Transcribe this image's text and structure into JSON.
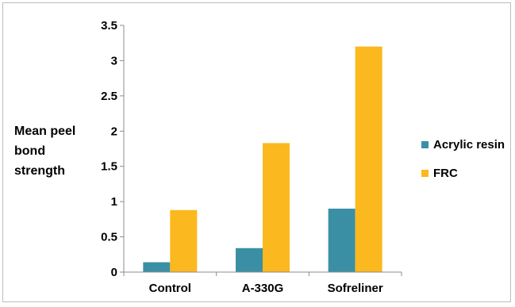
{
  "chart_data": {
    "type": "bar",
    "categories": [
      "Control",
      "A-330G",
      "Sofreliner"
    ],
    "series": [
      {
        "name": "Acrylic resin",
        "values": [
          0.14,
          0.34,
          0.9
        ],
        "color": "#3a8fa5"
      },
      {
        "name": "FRC",
        "values": [
          0.88,
          1.83,
          3.2
        ],
        "color": "#fbb81f"
      }
    ],
    "title": "",
    "xlabel": "",
    "ylabel": [
      "Mean peel",
      "bond",
      "strength"
    ],
    "ylim": [
      0,
      3.5
    ],
    "yticks": [
      0,
      0.5,
      1,
      1.5,
      2,
      2.5,
      3,
      3.5
    ],
    "ytick_labels": [
      "0",
      "0.5",
      "1",
      "1.5",
      "2",
      "2.5",
      "3",
      "3.5"
    ],
    "grid": false,
    "legend_position": "right"
  }
}
